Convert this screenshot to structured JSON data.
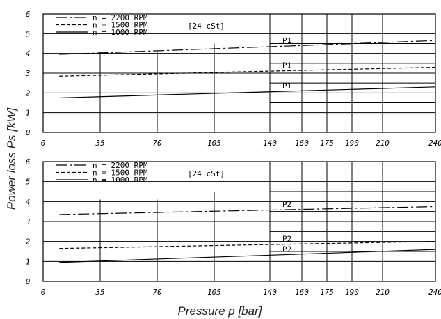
{
  "chart_data": [
    {
      "type": "line",
      "title": "",
      "x_ticks": [
        "0",
        "35",
        "70",
        "105",
        "140",
        "160",
        "175",
        "190",
        "210",
        "240"
      ],
      "y_ticks": [
        "0",
        "1",
        "2",
        "3",
        "4",
        "5",
        "6"
      ],
      "xlim": [
        0,
        240
      ],
      "ylim": [
        0,
        6
      ],
      "legend_location": "top-left",
      "legend": [
        {
          "label": "n = 2200 RPM",
          "style": "dash-dot"
        },
        {
          "label": "n = 1500 RPM",
          "style": "dashed"
        },
        {
          "label": "n = 1000 RPM",
          "style": "solid"
        }
      ],
      "legend_note": "[24 cSt]",
      "series": [
        {
          "name": "n = 2200 RPM",
          "style": "dash-dot",
          "label": "P1",
          "x": [
            10,
            240
          ],
          "y": [
            3.95,
            4.65
          ]
        },
        {
          "name": "n = 1500 RPM",
          "style": "dashed",
          "label": "P1",
          "x": [
            10,
            240
          ],
          "y": [
            2.85,
            3.3
          ]
        },
        {
          "name": "n = 1000 RPM",
          "style": "solid",
          "label": "P1",
          "x": [
            10,
            240
          ],
          "y": [
            1.75,
            2.3
          ]
        }
      ]
    },
    {
      "type": "line",
      "title": "",
      "x_ticks": [
        "0",
        "35",
        "70",
        "105",
        "140",
        "160",
        "175",
        "190",
        "210",
        "240"
      ],
      "y_ticks": [
        "0",
        "1",
        "2",
        "3",
        "4",
        "5",
        "6"
      ],
      "xlim": [
        0,
        240
      ],
      "ylim": [
        0,
        6
      ],
      "legend_location": "top-left",
      "legend": [
        {
          "label": "n = 2200 RPM",
          "style": "dash-dot"
        },
        {
          "label": "n = 1500 RPM",
          "style": "dashed"
        },
        {
          "label": "n = 1000 RPM",
          "style": "solid"
        }
      ],
      "legend_note": "[24 cSt]",
      "series": [
        {
          "name": "n = 2200 RPM",
          "style": "dash-dot",
          "label": "P2",
          "x": [
            10,
            240
          ],
          "y": [
            3.35,
            3.75
          ]
        },
        {
          "name": "n = 1500 RPM",
          "style": "dashed",
          "label": "P2",
          "x": [
            10,
            240
          ],
          "y": [
            1.65,
            2.0
          ]
        },
        {
          "name": "n = 1000 RPM",
          "style": "solid",
          "label": "P2",
          "x": [
            10,
            240
          ],
          "y": [
            0.95,
            1.6
          ]
        }
      ]
    }
  ],
  "axes": {
    "ylabel": "Power loss Ps [kW]",
    "xlabel": "Pressure p [bar]"
  }
}
